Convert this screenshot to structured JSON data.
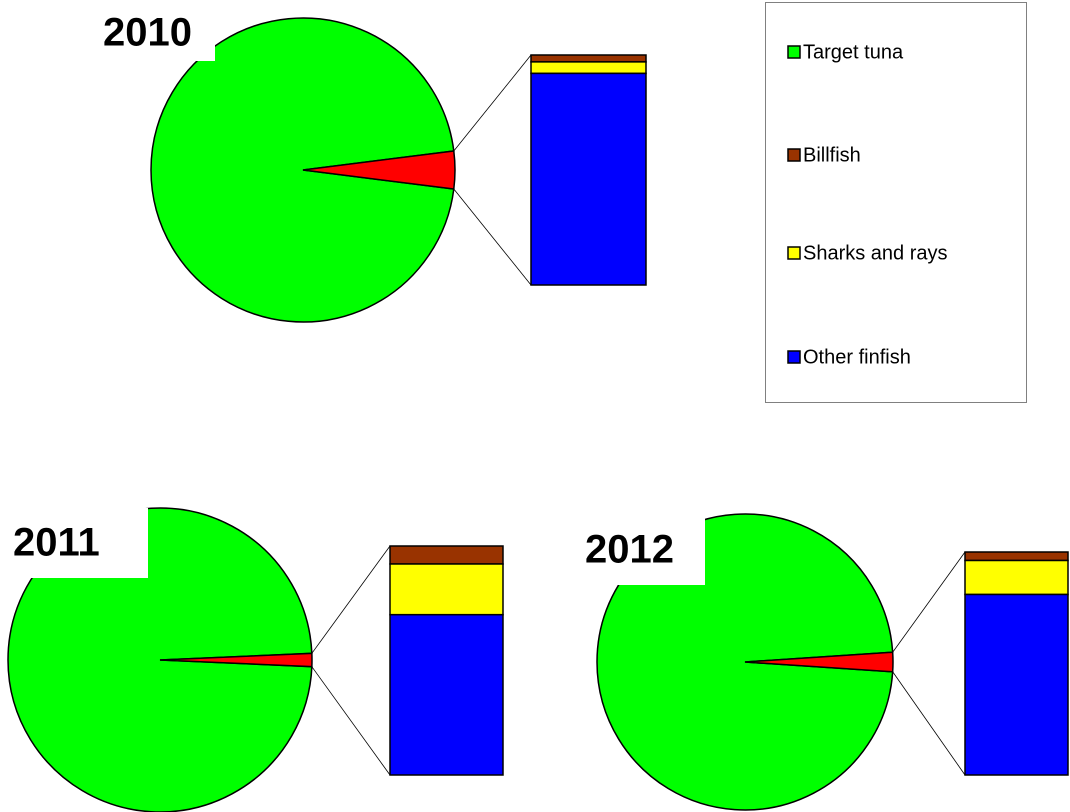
{
  "chart_data": [
    {
      "type": "pie",
      "title": "2010",
      "categories": [
        "Target tuna",
        "Billfish",
        "Sharks and rays",
        "Other finfish"
      ],
      "values": [
        96,
        0.12,
        0.2,
        3.68
      ],
      "colors": [
        "#00ff00",
        "#993300",
        "#ffff00",
        "#0000ff"
      ],
      "split_color": "#ff0000",
      "legend": "right"
    },
    {
      "type": "pie",
      "title": "2011",
      "values": [
        98.6,
        0.11,
        0.31,
        0.98
      ]
    },
    {
      "type": "pie",
      "title": "2012",
      "values": [
        97.9,
        0.08,
        0.32,
        1.7
      ]
    }
  ]
}
